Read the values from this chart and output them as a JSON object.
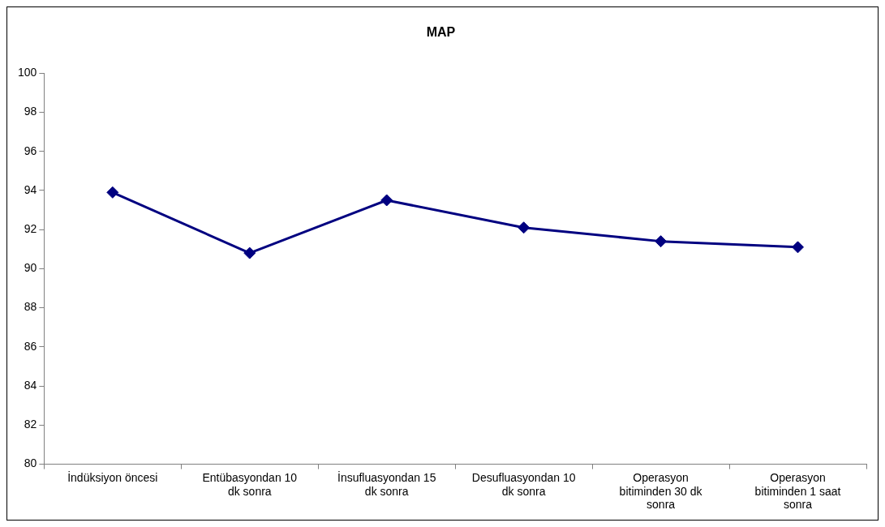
{
  "chart_data": {
    "type": "line",
    "title": "MAP",
    "categories": [
      "İndüksiyon öncesi",
      "Entübasyondan 10 dk sonra",
      "İnsufluasyondan 15 dk sonra",
      "Desufluasyondan 10 dk sonra",
      "Operasyon bitiminden 30 dk sonra",
      "Operasyon bitiminden 1 saat sonra"
    ],
    "series": [
      {
        "color": "#000080",
        "values": [
          93.9,
          90.8,
          93.5,
          92.1,
          91.4,
          91.1
        ]
      }
    ],
    "ylim": [
      80,
      100
    ],
    "yticks": [
      80,
      82,
      84,
      86,
      88,
      90,
      92,
      94,
      96,
      98,
      100
    ],
    "grid": false,
    "legend": false,
    "marker": "diamond",
    "line_style": "solid"
  }
}
